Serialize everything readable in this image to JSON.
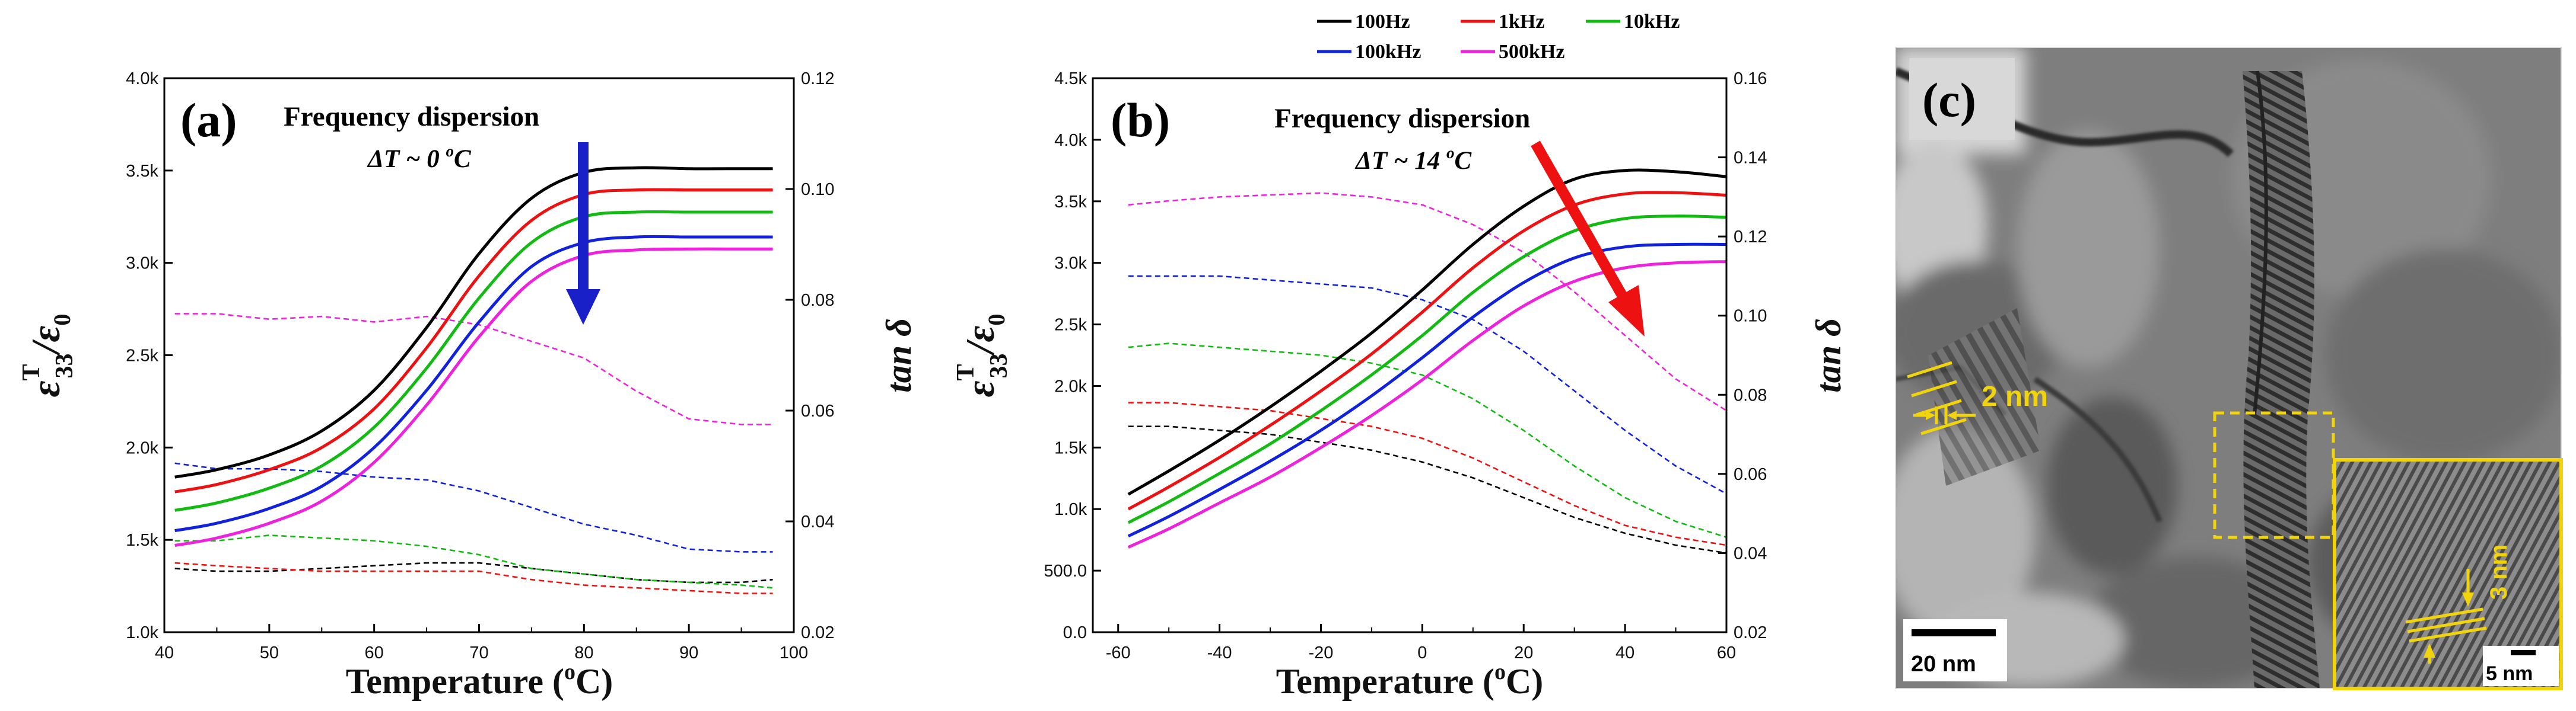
{
  "legend": {
    "entries": [
      {
        "label": "100Hz",
        "color": "#000000"
      },
      {
        "label": "1kHz",
        "color": "#ee1111"
      },
      {
        "label": "10kHz",
        "color": "#11bb11"
      },
      {
        "label": "100kHz",
        "color": "#1122dd"
      },
      {
        "label": "500kHz",
        "color": "#ee22dd"
      }
    ]
  },
  "chart_data": [
    {
      "type": "line",
      "panel_label": "(a)",
      "annotation_title": "Frequency dispersion",
      "annotation_dt": "ΔT ~ 0 ",
      "annotation_unit_sup": "o",
      "annotation_unit": "C",
      "xlabel": "Temperature (",
      "xlabel_sup": "o",
      "xlabel_end": "C)",
      "ylabel": "ε",
      "ylabel_sup": "T",
      "ylabel_sub": "33",
      "ylabel_den": "/ε",
      "ylabel_den_sub": "0",
      "y2label": "tan δ",
      "xlim": [
        40,
        100
      ],
      "ylim": [
        1000,
        4000
      ],
      "y2lim": [
        0.02,
        0.12
      ],
      "x_ticks": [
        "40",
        "50",
        "60",
        "70",
        "80",
        "90",
        "100"
      ],
      "y_ticks": [
        "1.0k",
        "1.5k",
        "2.0k",
        "2.5k",
        "3.0k",
        "3.5k",
        "4.0k"
      ],
      "y2_ticks": [
        "0.02",
        "0.04",
        "0.06",
        "0.08",
        "0.10",
        "0.12"
      ],
      "permittivity_series": [
        {
          "name": "100Hz",
          "x": [
            41,
            45,
            50,
            55,
            60,
            65,
            70,
            75,
            80,
            85,
            90,
            95,
            98
          ],
          "values": [
            1840,
            1880,
            1960,
            2090,
            2310,
            2650,
            3050,
            3350,
            3490,
            3515,
            3510,
            3510,
            3510
          ]
        },
        {
          "name": "1kHz",
          "x": [
            41,
            45,
            50,
            55,
            60,
            65,
            70,
            75,
            80,
            85,
            90,
            95,
            98
          ],
          "values": [
            1760,
            1800,
            1880,
            2000,
            2210,
            2540,
            2930,
            3230,
            3370,
            3395,
            3395,
            3395,
            3395
          ]
        },
        {
          "name": "10kHz",
          "x": [
            41,
            45,
            50,
            55,
            60,
            65,
            70,
            75,
            80,
            85,
            90,
            95,
            98
          ],
          "values": [
            1660,
            1700,
            1780,
            1900,
            2110,
            2430,
            2810,
            3110,
            3250,
            3275,
            3275,
            3275,
            3275
          ]
        },
        {
          "name": "100kHz",
          "x": [
            41,
            45,
            50,
            55,
            60,
            65,
            70,
            75,
            80,
            85,
            90,
            95,
            98
          ],
          "values": [
            1550,
            1590,
            1670,
            1790,
            2000,
            2310,
            2680,
            2980,
            3110,
            3140,
            3140,
            3140,
            3140
          ]
        },
        {
          "name": "500kHz",
          "x": [
            41,
            45,
            50,
            55,
            60,
            65,
            70,
            75,
            80,
            85,
            90,
            95,
            98
          ],
          "values": [
            1470,
            1510,
            1590,
            1710,
            1920,
            2230,
            2600,
            2900,
            3040,
            3070,
            3075,
            3075,
            3075
          ]
        }
      ],
      "loss_series": [
        {
          "name": "100Hz",
          "x": [
            41,
            45,
            50,
            55,
            60,
            65,
            70,
            75,
            80,
            85,
            90,
            95,
            98
          ],
          "values": [
            0.0315,
            0.031,
            0.031,
            0.0315,
            0.032,
            0.0325,
            0.0325,
            0.0315,
            0.0305,
            0.0295,
            0.029,
            0.029,
            0.0295
          ]
        },
        {
          "name": "1kHz",
          "x": [
            41,
            45,
            50,
            55,
            60,
            65,
            70,
            75,
            80,
            85,
            90,
            95,
            98
          ],
          "values": [
            0.0325,
            0.032,
            0.0315,
            0.031,
            0.031,
            0.031,
            0.031,
            0.0295,
            0.0285,
            0.028,
            0.0275,
            0.027,
            0.027
          ]
        },
        {
          "name": "10kHz",
          "x": [
            41,
            45,
            50,
            55,
            60,
            65,
            70,
            75,
            80,
            85,
            90,
            95,
            98
          ],
          "values": [
            0.0365,
            0.0365,
            0.0375,
            0.037,
            0.0365,
            0.0355,
            0.034,
            0.0315,
            0.0305,
            0.0295,
            0.029,
            0.0285,
            0.028
          ]
        },
        {
          "name": "100kHz",
          "x": [
            41,
            45,
            50,
            55,
            60,
            65,
            70,
            75,
            80,
            85,
            90,
            95,
            98
          ],
          "values": [
            0.0505,
            0.0495,
            0.0495,
            0.049,
            0.048,
            0.0475,
            0.0455,
            0.0425,
            0.0395,
            0.0375,
            0.035,
            0.0345,
            0.0345
          ]
        },
        {
          "name": "500kHz",
          "x": [
            41,
            45,
            50,
            55,
            60,
            65,
            70,
            75,
            80,
            85,
            90,
            95,
            98
          ],
          "values": [
            0.0775,
            0.0775,
            0.0765,
            0.077,
            0.076,
            0.077,
            0.0755,
            0.0725,
            0.0695,
            0.0635,
            0.0585,
            0.0575,
            0.0575
          ]
        }
      ]
    },
    {
      "type": "line",
      "panel_label": "(b)",
      "annotation_title": "Frequency dispersion",
      "annotation_dt": "ΔT ~ 14 ",
      "annotation_unit_sup": "o",
      "annotation_unit": "C",
      "xlabel": "Temperature (",
      "xlabel_sup": "o",
      "xlabel_end": "C)",
      "ylabel": "ε",
      "ylabel_sup": "T",
      "ylabel_sub": "33",
      "ylabel_den": "/ε",
      "ylabel_den_sub": "0",
      "y2label": "tan δ",
      "xlim": [
        -65,
        60
      ],
      "ylim": [
        0,
        4500
      ],
      "y2lim": [
        0.02,
        0.16
      ],
      "x_ticks": [
        "-60",
        "-40",
        "-20",
        "0",
        "20",
        "40",
        "60"
      ],
      "y_ticks": [
        "0.0",
        "500.0",
        "1.0k",
        "1.5k",
        "2.0k",
        "2.5k",
        "3.0k",
        "3.5k",
        "4.0k",
        "4.5k"
      ],
      "y2_ticks": [
        "0.02",
        "0.04",
        "0.06",
        "0.08",
        "0.10",
        "0.12",
        "0.14",
        "0.16"
      ],
      "permittivity_series": [
        {
          "name": "100Hz",
          "x": [
            -58,
            -50,
            -40,
            -30,
            -20,
            -10,
            0,
            10,
            20,
            30,
            40,
            50,
            60
          ],
          "values": [
            1120,
            1310,
            1560,
            1830,
            2120,
            2430,
            2780,
            3150,
            3460,
            3680,
            3750,
            3740,
            3700
          ]
        },
        {
          "name": "1kHz",
          "x": [
            -58,
            -50,
            -40,
            -30,
            -20,
            -10,
            0,
            10,
            20,
            30,
            40,
            50,
            60
          ],
          "values": [
            1000,
            1180,
            1420,
            1680,
            1960,
            2260,
            2600,
            2960,
            3260,
            3470,
            3560,
            3570,
            3550
          ]
        },
        {
          "name": "10kHz",
          "x": [
            -58,
            -50,
            -40,
            -30,
            -20,
            -10,
            0,
            10,
            20,
            30,
            40,
            50,
            60
          ],
          "values": [
            890,
            1060,
            1290,
            1530,
            1800,
            2090,
            2410,
            2760,
            3050,
            3260,
            3360,
            3380,
            3370
          ]
        },
        {
          "name": "100kHz",
          "x": [
            -58,
            -50,
            -40,
            -30,
            -20,
            -10,
            0,
            10,
            20,
            30,
            40,
            50,
            60
          ],
          "values": [
            780,
            940,
            1160,
            1390,
            1640,
            1920,
            2230,
            2560,
            2840,
            3040,
            3130,
            3150,
            3150
          ]
        },
        {
          "name": "500kHz",
          "x": [
            -58,
            -50,
            -40,
            -30,
            -20,
            -10,
            0,
            10,
            20,
            30,
            40,
            50,
            60
          ],
          "values": [
            690,
            840,
            1050,
            1260,
            1500,
            1760,
            2050,
            2370,
            2650,
            2850,
            2960,
            3000,
            3010
          ]
        }
      ],
      "loss_series": [
        {
          "name": "100Hz",
          "x": [
            -58,
            -50,
            -40,
            -30,
            -20,
            -10,
            0,
            10,
            20,
            30,
            40,
            50,
            60
          ],
          "values": [
            0.072,
            0.072,
            0.071,
            0.07,
            0.068,
            0.066,
            0.063,
            0.059,
            0.054,
            0.049,
            0.045,
            0.042,
            0.04
          ]
        },
        {
          "name": "1kHz",
          "x": [
            -58,
            -50,
            -40,
            -30,
            -20,
            -10,
            0,
            10,
            20,
            30,
            40,
            50,
            60
          ],
          "values": [
            0.078,
            0.078,
            0.077,
            0.076,
            0.074,
            0.072,
            0.069,
            0.064,
            0.058,
            0.052,
            0.047,
            0.044,
            0.042
          ]
        },
        {
          "name": "10kHz",
          "x": [
            -58,
            -50,
            -40,
            -30,
            -20,
            -10,
            0,
            10,
            20,
            30,
            40,
            50,
            60
          ],
          "values": [
            0.092,
            0.093,
            0.092,
            0.091,
            0.09,
            0.088,
            0.085,
            0.079,
            0.071,
            0.062,
            0.054,
            0.048,
            0.044
          ]
        },
        {
          "name": "100kHz",
          "x": [
            -58,
            -50,
            -40,
            -30,
            -20,
            -10,
            0,
            10,
            20,
            30,
            40,
            50,
            60
          ],
          "values": [
            0.11,
            0.11,
            0.11,
            0.109,
            0.108,
            0.107,
            0.104,
            0.099,
            0.091,
            0.081,
            0.071,
            0.062,
            0.055
          ]
        },
        {
          "name": "500kHz",
          "x": [
            -58,
            -50,
            -40,
            -30,
            -20,
            -10,
            0,
            10,
            20,
            30,
            40,
            50,
            60
          ],
          "values": [
            0.128,
            0.129,
            0.13,
            0.1305,
            0.131,
            0.13,
            0.128,
            0.123,
            0.116,
            0.106,
            0.095,
            0.084,
            0.076
          ]
        }
      ]
    }
  ],
  "tem_panel": {
    "panel_label": "(c)",
    "lattice_label": "2 nm",
    "inset_lattice_label": "3 nm",
    "scalebar_label": "20 nm",
    "inset_scalebar_label": "5 nm"
  }
}
